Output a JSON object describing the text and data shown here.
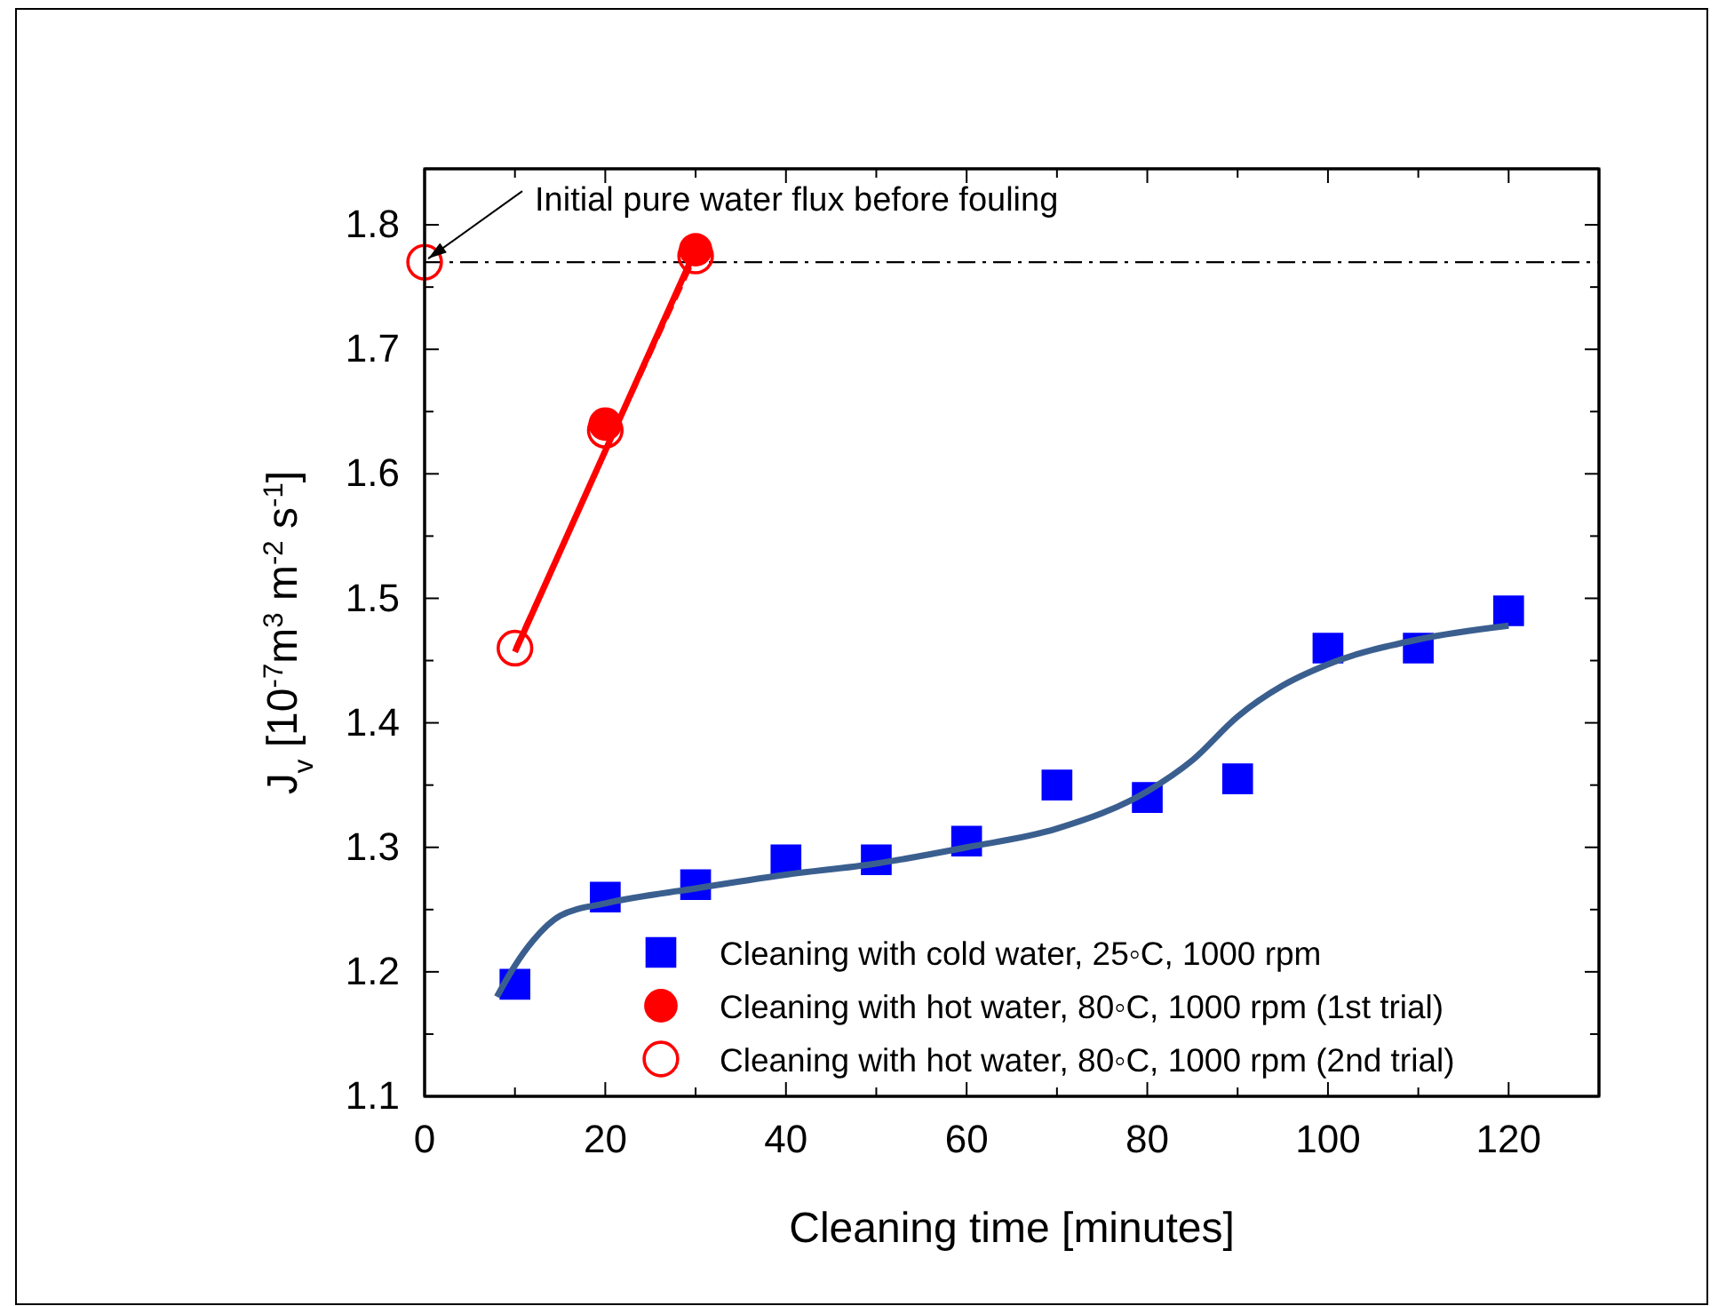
{
  "chart_data": {
    "type": "scatter",
    "xlabel": "Cleaning time [minutes]",
    "ylabel": "J$_{v}$ [10$^{-7}$m$^{3}$ m$^{-2}$ s$^{-1}$]",
    "xlim": [
      0,
      130
    ],
    "ylim": [
      1.1,
      1.845
    ],
    "xticks": [
      0,
      {
        "value": 10,
        "label": null
      },
      20,
      {
        "value": 30,
        "label": null
      },
      40,
      {
        "value": 50,
        "label": null
      },
      60,
      {
        "value": 70,
        "label": null
      },
      80,
      {
        "value": 90,
        "label": null
      },
      100,
      {
        "value": 110,
        "label": null
      },
      120
    ],
    "yticks": [
      1.1,
      {
        "value": 1.15,
        "label": null
      },
      1.2,
      {
        "value": 1.25,
        "label": null
      },
      1.3,
      {
        "value": 1.35,
        "label": null
      },
      1.4,
      {
        "value": 1.45,
        "label": null
      },
      1.5,
      {
        "value": 1.55,
        "label": null
      },
      1.6,
      {
        "value": 1.65,
        "label": null
      },
      1.7,
      {
        "value": 1.75,
        "label": null
      },
      1.8
    ],
    "grid": false,
    "legend": "bottom right",
    "ref_lines": [
      {
        "axis": "y",
        "value": 1.77,
        "color": "#000000",
        "line_style": "dashdot"
      }
    ],
    "annotations": [
      {
        "text": "Initial pure water flux before fouling",
        "x": 0,
        "y": 1.77
      }
    ],
    "series": [
      {
        "name": "Cleaning with cold water, 25◦C, 1000 rpm",
        "color": "#0000ff",
        "marker": "square",
        "x": [
          10,
          20,
          30,
          40,
          50,
          60,
          70,
          80,
          90,
          100,
          110,
          120
        ],
        "values": [
          1.19,
          1.26,
          1.27,
          1.29,
          1.29,
          1.305,
          1.35,
          1.34,
          1.355,
          1.46,
          1.46,
          1.49
        ]
      },
      {
        "name": "Cleaning with hot water, 80◦C, 1000 rpm (1st trial)",
        "color": "#ff0000",
        "marker": "circle",
        "x": [
          20,
          30
        ],
        "values": [
          1.64,
          1.78
        ]
      },
      {
        "name": "Cleaning with hot water, 80◦C, 1000 rpm (2nd trial)",
        "color": "#ff0000",
        "marker": "circle",
        "x": [
          0,
          10,
          20,
          30
        ],
        "values": [
          1.77,
          1.46,
          1.635,
          1.775
        ]
      },
      {
        "type": "line",
        "color": "#3a5f8f",
        "marker": "none",
        "line_style": "solid",
        "x": [
          8,
          10,
          12,
          15,
          20,
          30,
          40,
          50,
          60,
          70,
          80,
          85,
          90,
          95,
          100,
          110,
          120
        ],
        "values": [
          1.18,
          1.205,
          1.225,
          1.245,
          1.255,
          1.267,
          1.278,
          1.287,
          1.3,
          1.315,
          1.345,
          1.37,
          1.405,
          1.43,
          1.447,
          1.467,
          1.478
        ]
      },
      {
        "type": "line",
        "color": "#ff0000",
        "marker": "none",
        "line_style": "solid",
        "x": [
          10,
          30
        ],
        "values": [
          1.457,
          1.78
        ]
      },
      {
        "type": "line",
        "color": "#ff0000",
        "marker": "none",
        "line_style": "dashed",
        "x": [
          10,
          30
        ],
        "values": [
          1.46,
          1.775
        ]
      }
    ]
  }
}
